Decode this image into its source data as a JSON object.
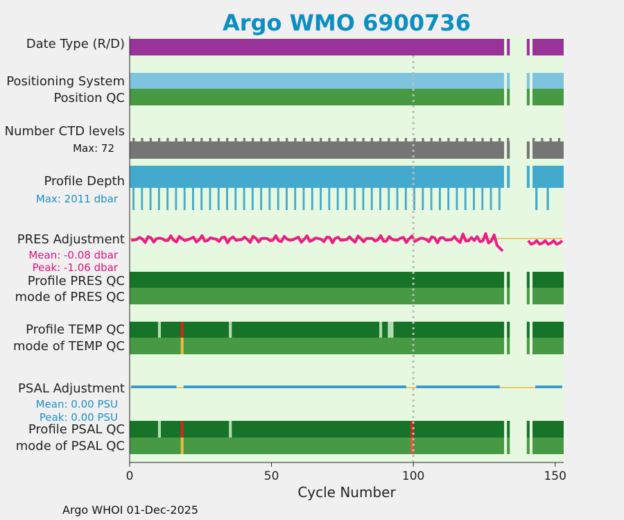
{
  "chart_data": {
    "type": "timeline",
    "title": "Argo WMO 6900736",
    "xlabel": "Cycle Number",
    "xlim": [
      0,
      153
    ],
    "xticks": [
      0,
      50,
      100,
      150
    ],
    "reference_line_x": 100,
    "missing_cycles": [
      132,
      134,
      135,
      136,
      137,
      138,
      139,
      141
    ],
    "rows": {
      "date_type": {
        "label": "Date Type (R/D)",
        "value": "R"
      },
      "positioning_system": {
        "label": "Positioning System"
      },
      "position_qc": {
        "label": "Position QC"
      },
      "ctd_levels": {
        "label": "Number CTD levels",
        "max_text": "Max: 72",
        "max": 72
      },
      "profile_depth": {
        "label": "Profile Depth",
        "max_text": "Max: 2011 dbar",
        "max": 2011,
        "short_profile_interval": 3,
        "short_profiles_after_gap": [
          143,
          147
        ]
      },
      "pres_adjustment": {
        "label": "PRES Adjustment",
        "mean_text": "Mean: -0.08 dbar",
        "peak_text": "Peak: -1.06 dbar",
        "mean": -0.08,
        "peak": -1.06
      },
      "profile_pres_qc": {
        "label": "Profile PRES QC"
      },
      "mode_pres_qc": {
        "label": "mode of PRES QC"
      },
      "profile_temp_qc": {
        "label": "Profile TEMP QC",
        "bad_cycles": [
          18
        ],
        "light_cycles": [
          10,
          35,
          88,
          91,
          92
        ]
      },
      "mode_temp_qc": {
        "label": "mode of TEMP QC",
        "probably_bad_cycles": [
          18
        ]
      },
      "psal_adjustment": {
        "label": "PSAL Adjustment",
        "mean_text": "Mean: 0.00 PSU",
        "peak_text": "Peak: 0.00 PSU",
        "mean": 0.0,
        "peak": 0.0,
        "no_data_ranges": [
          [
            17,
            18
          ],
          [
            98,
            100
          ],
          [
            131,
            142
          ]
        ]
      },
      "profile_psal_qc": {
        "label": "Profile PSAL QC",
        "bad_cycles": [
          18,
          99
        ],
        "light_cycles": [
          10,
          35
        ]
      },
      "mode_psal_qc": {
        "label": "mode of PSAL QC",
        "probably_bad_cycles": [
          18
        ],
        "bad_mode_cycles": [
          99
        ]
      }
    }
  },
  "colors": {
    "background": "#e6f9e0",
    "date_type": "#993399",
    "positioning": "#7fc4df",
    "qc_good": "#479944",
    "qc_profile": "#177327",
    "qc_light": "#b7dcb2",
    "ctd": "#757575",
    "depth": "#44aacd",
    "pres_adj": "#ea1e8a",
    "pres_zero": "#f0b83a",
    "psal_adj": "#3a9bd0",
    "bad": "#d9231f",
    "probably_bad": "#f0b83a",
    "bad_mode": "#e8533a",
    "ref_line": "#bbbbbb",
    "psal_label": "#1e90c8"
  },
  "footer": "Argo WHOI 01-Dec-2025"
}
